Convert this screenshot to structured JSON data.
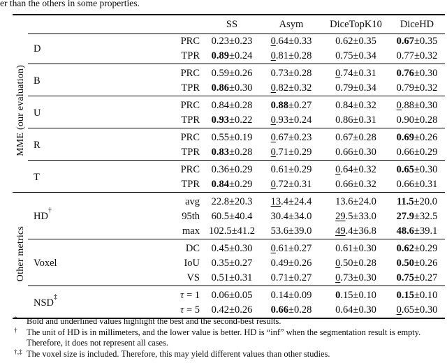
{
  "caption_fragment": "er than the others in some properties.",
  "table": {
    "column_headers": [
      "SS",
      "Asym",
      "DiceTopK10",
      "DiceHD"
    ],
    "mark_legend": {
      "b": "best (bold)",
      "u": "second-best (underline)"
    },
    "sections": [
      {
        "label": "MME (our evaluation)",
        "groups": [
          {
            "label": "D",
            "sup": "",
            "rows": [
              {
                "sub": "PRC",
                "cells": [
                  [
                    "",
                    "",
                    "0.23±0.23"
                  ],
                  [
                    "u",
                    "0",
                    ".64±0.33"
                  ],
                  [
                    "",
                    "",
                    "0.62±0.35"
                  ],
                  [
                    "b",
                    "0.67",
                    "±0.35"
                  ]
                ]
              },
              {
                "sub": "TPR",
                "cells": [
                  [
                    "b",
                    "0.89",
                    "±0.24"
                  ],
                  [
                    "u",
                    "0",
                    ".81±0.28"
                  ],
                  [
                    "",
                    "",
                    "0.75±0.34"
                  ],
                  [
                    "",
                    "",
                    "0.77±0.32"
                  ]
                ]
              }
            ]
          },
          {
            "label": "B",
            "sup": "",
            "rows": [
              {
                "sub": "PRC",
                "cells": [
                  [
                    "",
                    "",
                    "0.59±0.26"
                  ],
                  [
                    "",
                    "",
                    "0.73±0.28"
                  ],
                  [
                    "u",
                    "0",
                    ".74±0.31"
                  ],
                  [
                    "b",
                    "0.76",
                    "±0.30"
                  ]
                ]
              },
              {
                "sub": "TPR",
                "cells": [
                  [
                    "b",
                    "0.86",
                    "±0.30"
                  ],
                  [
                    "u",
                    "0",
                    ".82±0.32"
                  ],
                  [
                    "",
                    "",
                    "0.79±0.34"
                  ],
                  [
                    "",
                    "",
                    "0.79±0.32"
                  ]
                ]
              }
            ]
          },
          {
            "label": "U",
            "sup": "",
            "rows": [
              {
                "sub": "PRC",
                "cells": [
                  [
                    "",
                    "",
                    "0.84±0.28"
                  ],
                  [
                    "b",
                    "0.88",
                    "±0.27"
                  ],
                  [
                    "",
                    "",
                    "0.84±0.32"
                  ],
                  [
                    "u",
                    "0",
                    ".88±0.30"
                  ]
                ]
              },
              {
                "sub": "TPR",
                "cells": [
                  [
                    "b",
                    "0.93",
                    "±0.22"
                  ],
                  [
                    "u",
                    "0",
                    ".93±0.24"
                  ],
                  [
                    "",
                    "",
                    "0.86±0.31"
                  ],
                  [
                    "",
                    "",
                    "0.90±0.28"
                  ]
                ]
              }
            ]
          },
          {
            "label": "R",
            "sup": "",
            "rows": [
              {
                "sub": "PRC",
                "cells": [
                  [
                    "",
                    "",
                    "0.55±0.19"
                  ],
                  [
                    "u",
                    "0",
                    ".67±0.23"
                  ],
                  [
                    "",
                    "",
                    "0.67±0.28"
                  ],
                  [
                    "b",
                    "0.69",
                    "±0.26"
                  ]
                ]
              },
              {
                "sub": "TPR",
                "cells": [
                  [
                    "b",
                    "0.83",
                    "±0.28"
                  ],
                  [
                    "u",
                    "0",
                    ".71±0.29"
                  ],
                  [
                    "",
                    "",
                    "0.66±0.30"
                  ],
                  [
                    "",
                    "",
                    "0.66±0.29"
                  ]
                ]
              }
            ]
          },
          {
            "label": "T",
            "sup": "",
            "rows": [
              {
                "sub": "PRC",
                "cells": [
                  [
                    "",
                    "",
                    "0.36±0.29"
                  ],
                  [
                    "",
                    "",
                    "0.61±0.29"
                  ],
                  [
                    "u",
                    "0",
                    ".64±0.32"
                  ],
                  [
                    "b",
                    "0.65",
                    "±0.30"
                  ]
                ]
              },
              {
                "sub": "TPR",
                "cells": [
                  [
                    "b",
                    "0.84",
                    "±0.29"
                  ],
                  [
                    "u",
                    "0",
                    ".72±0.31"
                  ],
                  [
                    "",
                    "",
                    "0.66±0.32"
                  ],
                  [
                    "",
                    "",
                    "0.66±0.31"
                  ]
                ]
              }
            ]
          }
        ]
      },
      {
        "label": "Other metrics",
        "groups": [
          {
            "label": "HD",
            "sup": "†",
            "rows": [
              {
                "sub": "avg",
                "cells": [
                  [
                    "",
                    "",
                    "22.8±20.3"
                  ],
                  [
                    "u",
                    "13",
                    ".4±24.4"
                  ],
                  [
                    "",
                    "",
                    "13.6±24.0"
                  ],
                  [
                    "b",
                    "11.5",
                    "±20.0"
                  ]
                ]
              },
              {
                "sub": "95th",
                "cells": [
                  [
                    "",
                    "",
                    "60.5±40.4"
                  ],
                  [
                    "",
                    "",
                    "30.4±34.0"
                  ],
                  [
                    "u",
                    "29",
                    ".5±33.0"
                  ],
                  [
                    "b",
                    "27.9",
                    "±32.5"
                  ]
                ]
              },
              {
                "sub": "max",
                "cells": [
                  [
                    "",
                    "",
                    "102.5±41.2"
                  ],
                  [
                    "",
                    "",
                    "53.6±39.0"
                  ],
                  [
                    "u",
                    "49",
                    ".4±36.8"
                  ],
                  [
                    "b",
                    "48.6",
                    "±39.1"
                  ]
                ]
              }
            ]
          },
          {
            "label": "Voxel",
            "sup": "",
            "rows": [
              {
                "sub": "DC",
                "cells": [
                  [
                    "",
                    "",
                    "0.45±0.30"
                  ],
                  [
                    "u",
                    "0",
                    ".61±0.27"
                  ],
                  [
                    "",
                    "",
                    "0.61±0.30"
                  ],
                  [
                    "b",
                    "0.62",
                    "±0.29"
                  ]
                ]
              },
              {
                "sub": "IoU",
                "cells": [
                  [
                    "",
                    "",
                    "0.35±0.27"
                  ],
                  [
                    "",
                    "",
                    "0.49±0.26"
                  ],
                  [
                    "u",
                    "0",
                    ".50±0.28"
                  ],
                  [
                    "b",
                    "0.50",
                    "±0.26"
                  ]
                ]
              },
              {
                "sub": "VS",
                "cells": [
                  [
                    "",
                    "",
                    "0.51±0.31"
                  ],
                  [
                    "",
                    "",
                    "0.71±0.27"
                  ],
                  [
                    "u",
                    "0",
                    ".73±0.30"
                  ],
                  [
                    "b",
                    "0.75",
                    "±0.27"
                  ]
                ]
              }
            ]
          },
          {
            "label": "NSD",
            "sup": "‡",
            "rows": [
              {
                "sub": "τ = 1",
                "cells": [
                  [
                    "",
                    "",
                    "0.06±0.05"
                  ],
                  [
                    "",
                    "",
                    "0.14±0.09"
                  ],
                  [
                    "b",
                    "0",
                    ".15±0.10"
                  ],
                  [
                    "b",
                    "0.15",
                    "±0.10"
                  ]
                ]
              },
              {
                "sub": "τ = 5",
                "cells": [
                  [
                    "",
                    "",
                    "0.42±0.26"
                  ],
                  [
                    "b",
                    "0.66",
                    "±0.28"
                  ],
                  [
                    "",
                    "",
                    "0.64±0.30"
                  ],
                  [
                    "u",
                    "0",
                    ".65±0.30"
                  ]
                ]
              }
            ]
          }
        ]
      }
    ]
  },
  "footnotes": [
    {
      "marker": "*",
      "text": "Bold and underlined values highlight the best and the second-best results."
    },
    {
      "marker": "†",
      "text": "The unit of HD is in millimeters, and the lower value is better. HD is “inf” when the segmentation result is empty. Therefore, it does not represent all cases."
    },
    {
      "marker": "†,‡",
      "text": "The voxel size is included. Therefore, this may yield different values than other studies."
    }
  ]
}
